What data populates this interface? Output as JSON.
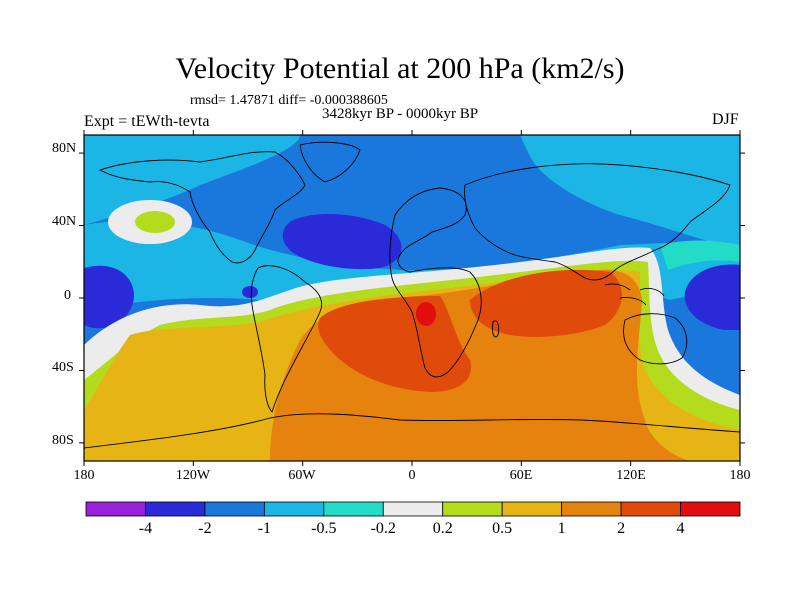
{
  "title": "Velocity Potential at 200 hPa (km2/s)",
  "stats_line": "rmsd= 1.47871 diff= -0.000388605",
  "period": "3428kyr BP - 0000kyr BP",
  "experiment": "Expt = tEWth-tevta",
  "season": "DJF",
  "map": {
    "projection": "cylindrical-equidistant",
    "lon_range": [
      -180,
      180
    ],
    "lat_range": [
      -90,
      90
    ],
    "x_ticks": [
      "180",
      "120W",
      "60W",
      "0",
      "60E",
      "120E",
      "180"
    ],
    "y_ticks": [
      "80N",
      "40N",
      "0",
      "40S",
      "80S"
    ],
    "features": [
      "coastlines"
    ]
  },
  "colorbar": {
    "tick_labels": [
      "-4",
      "-2",
      "-1",
      "-0.5",
      "-0.2",
      "0.2",
      "0.5",
      "1",
      "2",
      "4"
    ],
    "colors": [
      "#9a20dc",
      "#2a2ad8",
      "#1a78dc",
      "#1cb6e6",
      "#22dcc8",
      "#ececec",
      "#b4dc1c",
      "#e6b414",
      "#e6820e",
      "#e04a0a",
      "#e20e0e"
    ]
  }
}
